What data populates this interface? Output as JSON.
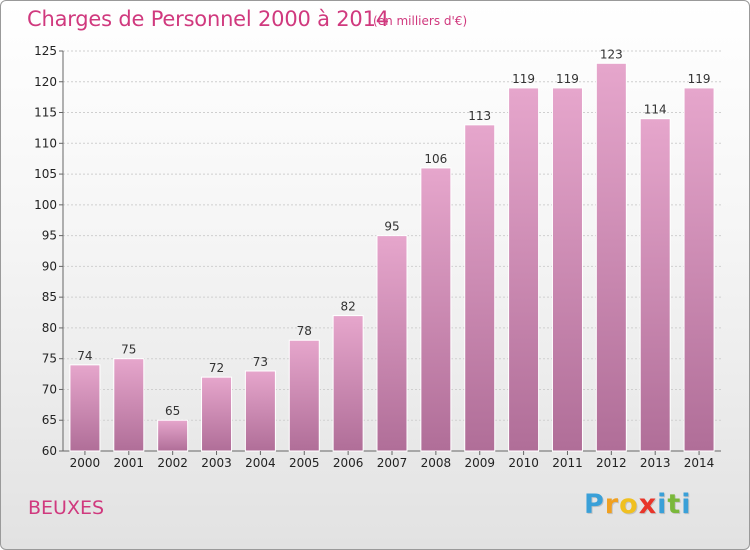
{
  "chart_data": {
    "type": "bar",
    "title": "Charges de Personnel 2000 à 2014",
    "subtitle": "(en milliers d'€)",
    "categories": [
      "2000",
      "2001",
      "2002",
      "2003",
      "2004",
      "2005",
      "2006",
      "2007",
      "2008",
      "2009",
      "2010",
      "2011",
      "2012",
      "2013",
      "2014"
    ],
    "values": [
      74,
      75,
      65,
      72,
      73,
      78,
      82,
      95,
      106,
      113,
      119,
      119,
      123,
      114,
      119
    ],
    "ylim": [
      60,
      125
    ],
    "yticks": [
      60,
      65,
      70,
      75,
      80,
      85,
      90,
      95,
      100,
      105,
      110,
      115,
      120,
      125
    ],
    "grid": true,
    "bar_color_top": "#e6a6cc",
    "bar_color_bottom": "#b06e98"
  },
  "commune": "BEUXES",
  "logo": {
    "letters": [
      "P",
      "r",
      "o",
      "x",
      "i",
      "t",
      "i"
    ],
    "colors": [
      "#3aa0d8",
      "#f0a020",
      "#f0c020",
      "#e8352a",
      "#3aa0d8",
      "#7ab83a",
      "#3aa0d8"
    ]
  }
}
